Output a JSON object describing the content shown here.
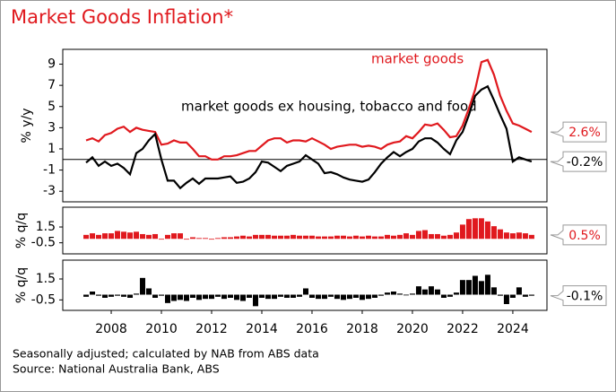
{
  "title": "Market Goods Inflation*",
  "footnotes": [
    "Seasonally adjusted; calculated by NAB from ABS data",
    "Source: National Australia Bank, ABS"
  ],
  "chart_data": [
    {
      "type": "line",
      "y_label": "% y/y",
      "xlim": [
        2006.07,
        2025.36
      ],
      "ylim": [
        -4,
        10.4
      ],
      "yticks": [
        9,
        7,
        5,
        3,
        1,
        -1,
        -3
      ],
      "x": [
        2007,
        2007.25,
        2007.5,
        2007.75,
        2008,
        2008.25,
        2008.5,
        2008.75,
        2009,
        2009.25,
        2009.5,
        2009.75,
        2010,
        2010.25,
        2010.5,
        2010.75,
        2011,
        2011.25,
        2011.5,
        2011.75,
        2012,
        2012.25,
        2012.5,
        2012.75,
        2013,
        2013.25,
        2013.5,
        2013.75,
        2014,
        2014.25,
        2014.5,
        2014.75,
        2015,
        2015.25,
        2015.5,
        2015.75,
        2016,
        2016.25,
        2016.5,
        2016.75,
        2017,
        2017.25,
        2017.5,
        2017.75,
        2018,
        2018.25,
        2018.5,
        2018.75,
        2019,
        2019.25,
        2019.5,
        2019.75,
        2020,
        2020.25,
        2020.5,
        2020.75,
        2021,
        2021.25,
        2021.5,
        2021.75,
        2022,
        2022.25,
        2022.5,
        2022.75,
        2023,
        2023.25,
        2023.5,
        2023.75,
        2024,
        2024.25,
        2024.5,
        2024.75
      ],
      "series": [
        {
          "name": "market goods",
          "color": "#e0191e",
          "end_label": "2.6%",
          "values": [
            1.8,
            2.0,
            1.7,
            2.3,
            2.5,
            2.9,
            3.1,
            2.6,
            3.0,
            2.8,
            2.7,
            2.6,
            1.4,
            1.5,
            1.8,
            1.6,
            1.6,
            1.0,
            0.3,
            0.3,
            0.0,
            0.0,
            0.3,
            0.3,
            0.4,
            0.6,
            0.8,
            0.8,
            1.3,
            1.8,
            2.0,
            2.0,
            1.6,
            1.8,
            1.8,
            1.7,
            2.0,
            1.7,
            1.4,
            1.0,
            1.2,
            1.3,
            1.4,
            1.4,
            1.2,
            1.3,
            1.2,
            1.0,
            1.4,
            1.6,
            1.7,
            2.2,
            2.0,
            2.6,
            3.3,
            3.2,
            3.4,
            2.8,
            2.1,
            2.2,
            3.2,
            4.8,
            6.6,
            9.2,
            9.4,
            8.0,
            6.0,
            4.6,
            3.4,
            3.2,
            2.9,
            2.6
          ]
        },
        {
          "name": "market goods ex housing, tobacco and food",
          "color": "#000000",
          "end_label": "-0.2%",
          "values": [
            -0.3,
            0.2,
            -0.6,
            -0.2,
            -0.6,
            -0.4,
            -0.8,
            -1.4,
            0.6,
            1.0,
            1.8,
            2.4,
            0.0,
            -2.0,
            -2.0,
            -2.7,
            -2.2,
            -1.8,
            -2.3,
            -1.8,
            -1.8,
            -1.8,
            -1.7,
            -1.6,
            -2.2,
            -2.1,
            -1.8,
            -1.2,
            -0.2,
            -0.3,
            -0.7,
            -1.1,
            -0.6,
            -0.4,
            -0.2,
            0.4,
            0.0,
            -0.4,
            -1.3,
            -1.2,
            -1.4,
            -1.7,
            -1.9,
            -2.0,
            -2.1,
            -1.9,
            -1.2,
            -0.4,
            0.2,
            0.7,
            0.3,
            0.7,
            1.0,
            1.7,
            2.0,
            2.0,
            1.6,
            1.0,
            0.5,
            1.8,
            2.6,
            4.2,
            6.0,
            6.6,
            6.9,
            5.6,
            4.2,
            2.9,
            -0.2,
            0.2,
            0.0,
            -0.2
          ]
        }
      ]
    },
    {
      "type": "bar",
      "y_label": "% q/q",
      "xlim": [
        2006.07,
        2025.36
      ],
      "ylim": [
        -1.9,
        4.0
      ],
      "yticks": [
        1.5,
        -0.5
      ],
      "x": [
        2007,
        2007.25,
        2007.5,
        2007.75,
        2008,
        2008.25,
        2008.5,
        2008.75,
        2009,
        2009.25,
        2009.5,
        2009.75,
        2010,
        2010.25,
        2010.5,
        2010.75,
        2011,
        2011.25,
        2011.5,
        2011.75,
        2012,
        2012.25,
        2012.5,
        2012.75,
        2013,
        2013.25,
        2013.5,
        2013.75,
        2014,
        2014.25,
        2014.5,
        2014.75,
        2015,
        2015.25,
        2015.5,
        2015.75,
        2016,
        2016.25,
        2016.5,
        2016.75,
        2017,
        2017.25,
        2017.5,
        2017.75,
        2018,
        2018.25,
        2018.5,
        2018.75,
        2019,
        2019.25,
        2019.5,
        2019.75,
        2020,
        2020.25,
        2020.5,
        2020.75,
        2021,
        2021.25,
        2021.5,
        2021.75,
        2022,
        2022.25,
        2022.5,
        2022.75,
        2023,
        2023.25,
        2023.5,
        2023.75,
        2024,
        2024.25,
        2024.5,
        2024.75
      ],
      "series": [
        {
          "name": "market goods",
          "color": "#e0191e",
          "end_label": "0.5%",
          "values": [
            0.5,
            0.7,
            0.5,
            0.7,
            0.7,
            1.0,
            0.9,
            0.8,
            0.9,
            0.6,
            0.5,
            0.6,
            0,
            0.5,
            0.7,
            0.7,
            0,
            0.2,
            0.1,
            0.1,
            0.0,
            0.1,
            0.2,
            0.2,
            0.3,
            0.4,
            0.3,
            0.5,
            0.5,
            0.5,
            0.4,
            0.4,
            0.4,
            0.5,
            0.4,
            0.4,
            0.4,
            0.3,
            0.3,
            0.3,
            0.4,
            0.4,
            0.3,
            0.4,
            0.3,
            0.4,
            0.3,
            0.3,
            0.5,
            0.4,
            0.5,
            0.7,
            0.5,
            1.0,
            1.1,
            0.6,
            0.6,
            0.4,
            0.5,
            0.8,
            1.8,
            2.5,
            2.6,
            2.6,
            2.2,
            1.6,
            1.2,
            0.8,
            0.7,
            0.8,
            0.7,
            0.5
          ]
        }
      ]
    },
    {
      "type": "bar",
      "y_label": "% q/q",
      "xlim": [
        2006.07,
        2025.36
      ],
      "ylim": [
        -1.5,
        3.3
      ],
      "yticks": [
        1.5,
        -0.5
      ],
      "xticks": [
        2008,
        2010,
        2012,
        2014,
        2016,
        2018,
        2020,
        2022,
        2024
      ],
      "x": [
        2007,
        2007.25,
        2007.5,
        2007.75,
        2008,
        2008.25,
        2008.5,
        2008.75,
        2009,
        2009.25,
        2009.5,
        2009.75,
        2010,
        2010.25,
        2010.5,
        2010.75,
        2011,
        2011.25,
        2011.5,
        2011.75,
        2012,
        2012.25,
        2012.5,
        2012.75,
        2013,
        2013.25,
        2013.5,
        2013.75,
        2014,
        2014.25,
        2014.5,
        2014.75,
        2015,
        2015.25,
        2015.5,
        2015.75,
        2016,
        2016.25,
        2016.5,
        2016.75,
        2017,
        2017.25,
        2017.5,
        2017.75,
        2018,
        2018.25,
        2018.5,
        2018.75,
        2019,
        2019.25,
        2019.5,
        2019.75,
        2020,
        2020.25,
        2020.5,
        2020.75,
        2021,
        2021.25,
        2021.5,
        2021.75,
        2022,
        2022.25,
        2022.5,
        2022.75,
        2023,
        2023.25,
        2023.5,
        2023.75,
        2024,
        2024.25,
        2024.5,
        2024.75
      ],
      "series": [
        {
          "name": "market goods ex housing, tobacco and food",
          "color": "#000000",
          "end_label": "-0.1%",
          "values": [
            -0.2,
            0.3,
            -0.1,
            -0.3,
            -0.2,
            -0.1,
            -0.2,
            -0.3,
            0.1,
            1.6,
            0.6,
            -0.3,
            -0.1,
            -0.8,
            -0.6,
            -0.5,
            -0.6,
            -0.3,
            -0.5,
            -0.4,
            -0.4,
            -0.2,
            -0.4,
            -0.3,
            -0.5,
            -0.6,
            -0.3,
            -1.1,
            -0.3,
            -0.4,
            -0.4,
            -0.2,
            -0.3,
            -0.3,
            -0.2,
            0.6,
            -0.3,
            -0.4,
            -0.4,
            -0.2,
            -0.4,
            -0.5,
            -0.4,
            -0.3,
            -0.5,
            -0.4,
            -0.3,
            -0.1,
            0.2,
            0.3,
            0.1,
            0.0,
            0.1,
            0.8,
            0.5,
            0.8,
            0.5,
            -0.3,
            -0.2,
            0.2,
            1.4,
            1.4,
            1.8,
            1.3,
            1.9,
            0.7,
            -0.1,
            -0.9,
            -0.3,
            0.7,
            -0.2,
            -0.1
          ]
        }
      ]
    }
  ]
}
